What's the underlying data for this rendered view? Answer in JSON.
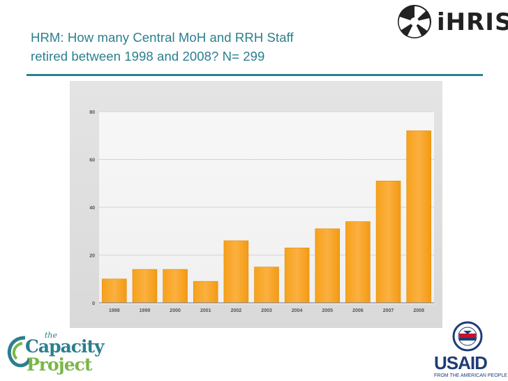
{
  "slide": {
    "title_line1": "HRM:  How many Central MoH and RRH Staff",
    "title_line2": "retired between 1998 and 2008? N= 299",
    "accent_color": "#2b7f8e"
  },
  "logos": {
    "ihris": "iHRIS",
    "capacity_the": "the",
    "capacity_line1": "Capacity",
    "capacity_line2": "Project",
    "usaid": "USAID",
    "usaid_tagline": "FROM THE AMERICAN PEOPLE"
  },
  "chart_data": {
    "type": "bar",
    "categories": [
      "1998",
      "1999",
      "2000",
      "2001",
      "2002",
      "2003",
      "2004",
      "2005",
      "2006",
      "2007",
      "2008"
    ],
    "values": [
      10,
      14,
      14,
      9,
      26,
      15,
      23,
      31,
      34,
      51,
      72
    ],
    "title": "",
    "xlabel": "",
    "ylabel": "",
    "ylim": [
      0,
      80
    ],
    "yticks": [
      0,
      20,
      40,
      60,
      80
    ],
    "grid": true,
    "bar_color": "#f5a623"
  }
}
